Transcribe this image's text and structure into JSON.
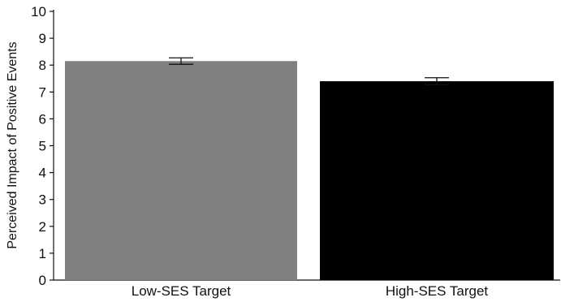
{
  "chart_data": {
    "type": "bar",
    "title": "",
    "xlabel": "",
    "ylabel": "Perceived Impact of Positive Events",
    "categories": [
      "Low-SES Target",
      "High-SES Target"
    ],
    "values": [
      8.15,
      7.4
    ],
    "error": [
      0.12,
      0.13
    ],
    "ylim": [
      0,
      10
    ],
    "yticks": [
      0,
      1,
      2,
      3,
      4,
      5,
      6,
      7,
      8,
      9,
      10
    ],
    "bar_colors": [
      "#808080",
      "#000000"
    ],
    "grid": false,
    "legend": "none"
  }
}
